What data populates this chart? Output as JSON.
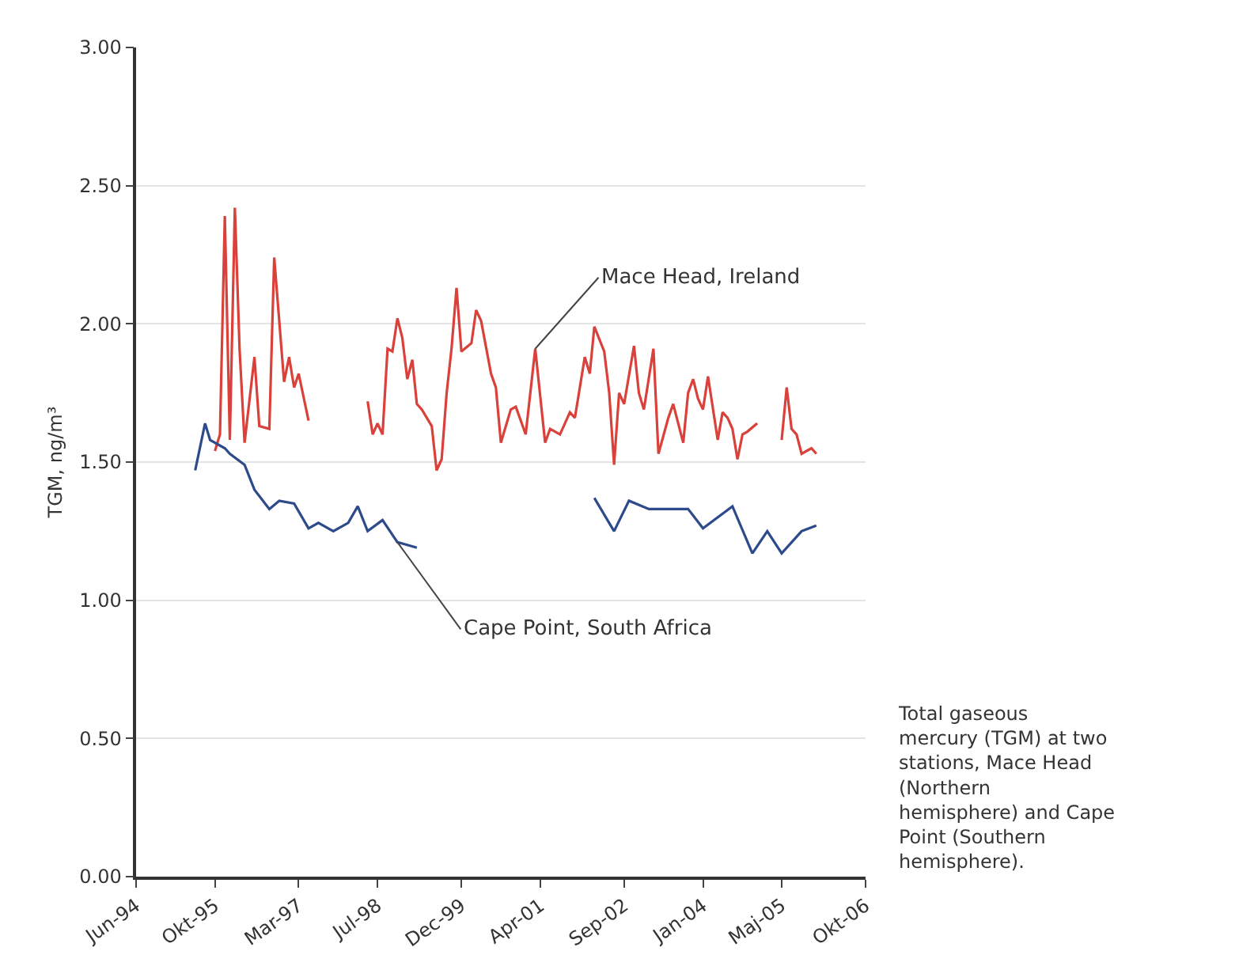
{
  "chart_data": {
    "type": "line",
    "ylabel": "TGM, ng/m³",
    "xlim": [
      "1994-06-01",
      "2006-10-01"
    ],
    "xticks": [
      {
        "value": "1994-06-01",
        "label": "Jun-94"
      },
      {
        "value": "1995-10-01",
        "label": "Okt-95"
      },
      {
        "value": "1997-03-01",
        "label": "Mar-97"
      },
      {
        "value": "1998-07-01",
        "label": "Jul-98"
      },
      {
        "value": "1999-12-01",
        "label": "Dec-99"
      },
      {
        "value": "2001-04-01",
        "label": "Apr-01"
      },
      {
        "value": "2002-09-01",
        "label": "Sep-02"
      },
      {
        "value": "2004-01-01",
        "label": "Jan-04"
      },
      {
        "value": "2005-05-01",
        "label": "Maj-05"
      },
      {
        "value": "2006-10-01",
        "label": "Okt-06"
      }
    ],
    "ylim": [
      0,
      3
    ],
    "yticks": [
      {
        "value": 0,
        "label": "0.00"
      },
      {
        "value": 0.5,
        "label": "0.50"
      },
      {
        "value": 1,
        "label": "1.00"
      },
      {
        "value": 1.5,
        "label": "1.50"
      },
      {
        "value": 2,
        "label": "2.00"
      },
      {
        "value": 2.5,
        "label": "2.50"
      },
      {
        "value": 3,
        "label": "3.00"
      }
    ],
    "grid": "y",
    "marker": "none",
    "line_style": "solid",
    "series": [
      {
        "color": "#d9413a",
        "x": [
          "1995-10",
          "1995-11",
          "1995-12",
          "1996-01",
          "1996-02",
          "1996-03",
          "1996-04",
          "1996-06",
          "1996-07",
          "1996-09",
          "1996-10",
          "1996-12",
          "1997-01",
          "1997-02",
          "1997-03",
          "1997-05",
          "1997-12",
          "1998-05",
          "1998-06",
          "1998-07",
          "1998-08",
          "1998-09",
          "1998-10",
          "1998-11",
          "1998-12",
          "1999-01",
          "1999-02",
          "1999-03",
          "1999-04",
          "1999-06",
          "1999-07",
          "1999-08",
          "1999-09",
          "1999-10",
          "1999-11",
          "1999-12",
          "2000-02",
          "2000-03",
          "2000-04",
          "2000-06",
          "2000-07",
          "2000-08",
          "2000-10",
          "2000-11",
          "2001-01",
          "2001-03",
          "2001-05",
          "2001-06",
          "2001-08",
          "2001-10",
          "2001-11",
          "2002-01",
          "2002-02",
          "2002-03",
          "2002-05",
          "2002-06",
          "2002-07",
          "2002-08",
          "2002-09",
          "2002-11",
          "2002-12",
          "2003-01",
          "2003-03",
          "2003-04",
          "2003-06",
          "2003-07",
          "2003-09",
          "2003-10",
          "2003-11",
          "2003-12",
          "2004-01",
          "2004-02",
          "2004-04",
          "2004-05",
          "2004-06",
          "2004-07",
          "2004-08",
          "2004-09",
          "2004-10",
          "2004-12",
          "2005-03",
          "2005-05",
          "2005-06",
          "2005-07",
          "2005-08",
          "2005-09",
          "2005-11",
          "2005-12"
        ],
        "values": [
          1.54,
          1.6,
          2.39,
          1.58,
          2.42,
          1.91,
          1.57,
          1.88,
          1.63,
          1.62,
          2.24,
          1.79,
          1.88,
          1.77,
          1.82,
          1.65,
          null,
          1.72,
          1.6,
          1.64,
          1.6,
          1.91,
          1.9,
          2.02,
          1.95,
          1.8,
          1.87,
          1.71,
          1.69,
          1.63,
          1.47,
          1.51,
          1.75,
          1.91,
          2.13,
          1.9,
          1.93,
          2.05,
          2.01,
          1.82,
          1.77,
          1.57,
          1.69,
          1.7,
          1.6,
          1.91,
          1.57,
          1.62,
          1.6,
          1.68,
          1.66,
          1.88,
          1.82,
          1.99,
          1.9,
          1.75,
          1.49,
          1.75,
          1.71,
          1.92,
          1.75,
          1.69,
          1.91,
          1.53,
          1.66,
          1.71,
          1.57,
          1.75,
          1.8,
          1.73,
          1.69,
          1.81,
          1.58,
          1.68,
          1.66,
          1.62,
          1.51,
          1.6,
          1.61,
          1.64,
          null,
          1.58,
          1.77,
          1.62,
          1.6,
          1.53,
          1.55,
          1.53
        ]
      },
      {
        "color": "#2d4a8a",
        "x": [
          "1995-06",
          "1995-08",
          "1995-09",
          "1995-12",
          "1996-01",
          "1996-04",
          "1996-06",
          "1996-09",
          "1996-11",
          "1997-02",
          "1997-05",
          "1997-07",
          "1997-10",
          "1998-01",
          "1998-03",
          "1998-05",
          "1998-08",
          "1998-11",
          "1999-01",
          "1999-03",
          "2000-06",
          "2002-03",
          "2002-07",
          "2002-10",
          "2003-02",
          "2003-10",
          "2004-01",
          "2004-07",
          "2004-11",
          "2005-02",
          "2005-05",
          "2005-09",
          "2005-12"
        ],
        "values": [
          1.47,
          1.64,
          1.58,
          1.55,
          1.53,
          1.49,
          1.4,
          1.33,
          1.36,
          1.35,
          1.26,
          1.28,
          1.25,
          1.28,
          1.34,
          1.25,
          1.29,
          1.21,
          1.2,
          1.19,
          null,
          1.37,
          1.25,
          1.36,
          1.33,
          1.33,
          1.26,
          1.34,
          1.17,
          1.25,
          1.17,
          1.25,
          1.27
        ]
      }
    ],
    "annotations": [
      {
        "text": "Mace Head, Ireland",
        "x": "2001-03",
        "y": 1.91
      },
      {
        "text": "Cape Point, South Africa",
        "x": "1998-11",
        "y": 1.21
      },
      "Total gaseous mercury (TGM) at two stations, Mace Head (Northern hemisphere) and Cape Point (Southern hemisphere)."
    ]
  }
}
